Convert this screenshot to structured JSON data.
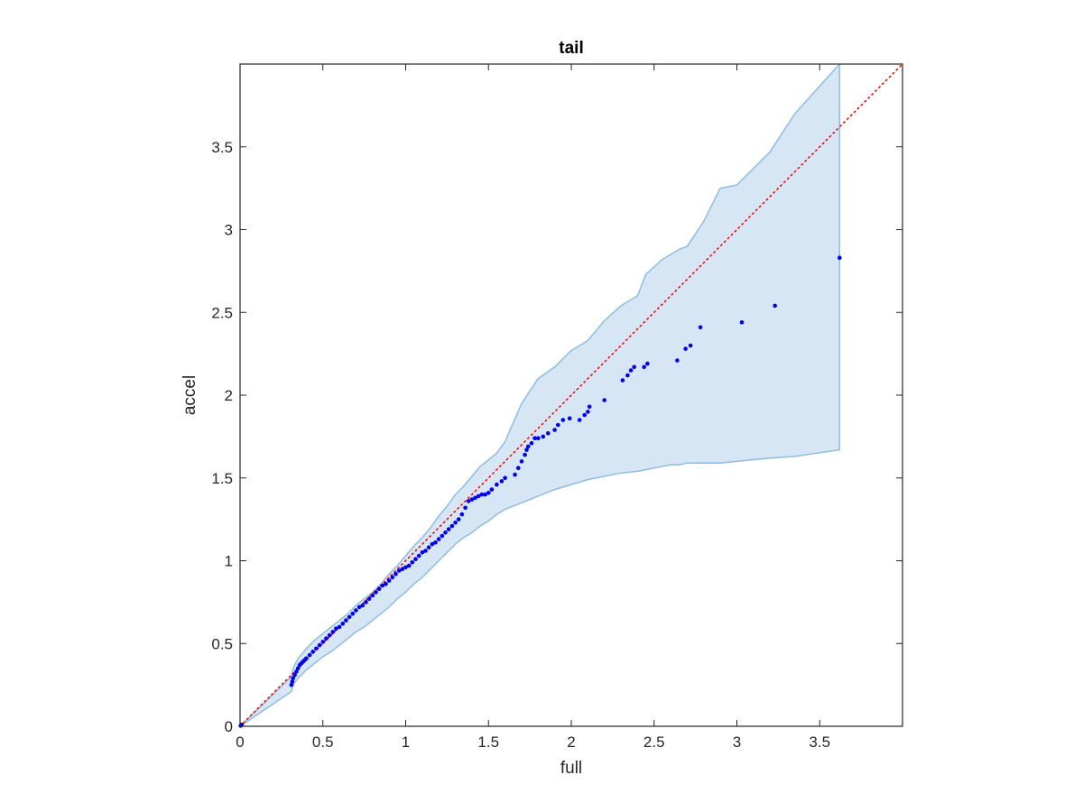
{
  "chart_data": {
    "type": "scatter",
    "title": "tail",
    "xlabel": "full",
    "ylabel": "accel",
    "xlim": [
      0,
      4
    ],
    "ylim": [
      0,
      4
    ],
    "xticks": [
      0,
      0.5,
      1,
      1.5,
      2,
      2.5,
      3,
      3.5
    ],
    "yticks": [
      0,
      0.5,
      1,
      1.5,
      2,
      2.5,
      3,
      3.5
    ],
    "xtick_labels": [
      "0",
      "0.5",
      "1",
      "1.5",
      "2",
      "2.5",
      "3",
      "3.5"
    ],
    "ytick_labels": [
      "0",
      "0.5",
      "1",
      "1.5",
      "2",
      "2.5",
      "3",
      "3.5"
    ],
    "grid": false,
    "box": true,
    "colors": {
      "band_fill": "#d6e6f4",
      "band_edge": "#8fbde0",
      "points": "#0000ee",
      "reference": "#ff0000",
      "axis": "#262626"
    },
    "reference_line": {
      "style": "dotted",
      "x": [
        0,
        4
      ],
      "y": [
        0,
        4
      ]
    },
    "envelope": {
      "x": [
        0,
        0.31,
        0.32,
        0.35,
        0.4,
        0.45,
        0.5,
        0.55,
        0.6,
        0.65,
        0.7,
        0.75,
        0.8,
        0.85,
        0.9,
        0.95,
        1.0,
        1.05,
        1.1,
        1.15,
        1.2,
        1.25,
        1.3,
        1.35,
        1.4,
        1.45,
        1.5,
        1.55,
        1.6,
        1.7,
        1.8,
        1.9,
        2.0,
        2.1,
        2.2,
        2.3,
        2.4,
        2.45,
        2.55,
        2.6,
        2.65,
        2.7,
        2.8,
        2.9,
        3.0,
        3.2,
        3.35,
        3.62
      ],
      "upper": [
        0,
        0.3,
        0.35,
        0.41,
        0.47,
        0.52,
        0.56,
        0.6,
        0.64,
        0.68,
        0.73,
        0.77,
        0.81,
        0.86,
        0.92,
        0.97,
        1.03,
        1.09,
        1.14,
        1.2,
        1.27,
        1.33,
        1.4,
        1.45,
        1.51,
        1.57,
        1.61,
        1.65,
        1.72,
        1.95,
        2.1,
        2.17,
        2.27,
        2.33,
        2.45,
        2.54,
        2.6,
        2.73,
        2.82,
        2.85,
        2.88,
        2.9,
        3.05,
        3.25,
        3.27,
        3.47,
        3.7,
        4.0
      ],
      "lower": [
        0,
        0.21,
        0.25,
        0.29,
        0.34,
        0.38,
        0.42,
        0.45,
        0.49,
        0.53,
        0.57,
        0.6,
        0.64,
        0.68,
        0.72,
        0.77,
        0.81,
        0.86,
        0.9,
        0.95,
        1.0,
        1.05,
        1.1,
        1.14,
        1.17,
        1.21,
        1.24,
        1.28,
        1.31,
        1.35,
        1.39,
        1.43,
        1.46,
        1.49,
        1.51,
        1.53,
        1.54,
        1.55,
        1.57,
        1.58,
        1.58,
        1.59,
        1.59,
        1.59,
        1.6,
        1.62,
        1.63,
        1.67
      ]
    },
    "series": [
      {
        "x": [
          0.003,
          0.005,
          0.01,
          0.31,
          0.315,
          0.32,
          0.33,
          0.34,
          0.35,
          0.36,
          0.37,
          0.38,
          0.39,
          0.4,
          0.42,
          0.44,
          0.46,
          0.48,
          0.5,
          0.52,
          0.54,
          0.56,
          0.58,
          0.6,
          0.62,
          0.64,
          0.66,
          0.68,
          0.7,
          0.72,
          0.74,
          0.76,
          0.78,
          0.8,
          0.82,
          0.84,
          0.86,
          0.88,
          0.9,
          0.92,
          0.94,
          0.96,
          0.98,
          1.0,
          1.02,
          1.04,
          1.06,
          1.08,
          1.1,
          1.12,
          1.14,
          1.16,
          1.18,
          1.2,
          1.22,
          1.24,
          1.26,
          1.28,
          1.3,
          1.32,
          1.34,
          1.36,
          1.38,
          1.4,
          1.42,
          1.44,
          1.46,
          1.48,
          1.5,
          1.52,
          1.55,
          1.58,
          1.6,
          1.66,
          1.68,
          1.7,
          1.72,
          1.73,
          1.74,
          1.76,
          1.78,
          1.8,
          1.83,
          1.86,
          1.9,
          1.92,
          1.95,
          1.99,
          2.05,
          2.08,
          2.1,
          2.11,
          2.2,
          2.31,
          2.34,
          2.36,
          2.38,
          2.44,
          2.46,
          2.64,
          2.69,
          2.72,
          2.78,
          3.03,
          3.23,
          3.62
        ],
        "y": [
          0.003,
          0.005,
          0.01,
          0.25,
          0.27,
          0.29,
          0.31,
          0.33,
          0.35,
          0.37,
          0.38,
          0.39,
          0.4,
          0.41,
          0.43,
          0.45,
          0.47,
          0.49,
          0.51,
          0.53,
          0.55,
          0.57,
          0.59,
          0.6,
          0.62,
          0.64,
          0.66,
          0.68,
          0.7,
          0.72,
          0.73,
          0.75,
          0.77,
          0.79,
          0.81,
          0.83,
          0.85,
          0.86,
          0.88,
          0.9,
          0.92,
          0.94,
          0.95,
          0.96,
          0.97,
          0.99,
          1.01,
          1.03,
          1.05,
          1.06,
          1.08,
          1.1,
          1.11,
          1.13,
          1.15,
          1.17,
          1.19,
          1.21,
          1.23,
          1.25,
          1.28,
          1.32,
          1.36,
          1.37,
          1.38,
          1.39,
          1.4,
          1.4,
          1.41,
          1.43,
          1.46,
          1.48,
          1.5,
          1.52,
          1.56,
          1.6,
          1.64,
          1.67,
          1.69,
          1.71,
          1.74,
          1.74,
          1.75,
          1.77,
          1.79,
          1.82,
          1.85,
          1.86,
          1.85,
          1.88,
          1.9,
          1.93,
          1.97,
          2.09,
          2.12,
          2.15,
          2.17,
          2.17,
          2.19,
          2.21,
          2.28,
          2.3,
          2.41,
          2.44,
          2.54,
          2.83
        ]
      }
    ]
  }
}
